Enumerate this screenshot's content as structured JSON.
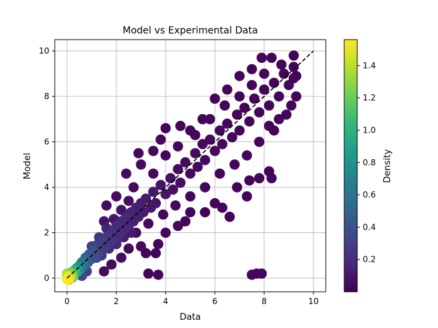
{
  "chart_data": {
    "type": "scatter",
    "title": "Model vs Experimental Data",
    "xlabel": "Data",
    "ylabel": "Model",
    "xlim": [
      -0.5,
      10.5
    ],
    "ylim": [
      -0.6,
      10.5
    ],
    "x_ticks": [
      0,
      2,
      4,
      6,
      8,
      10
    ],
    "y_ticks": [
      0,
      2,
      4,
      6,
      8,
      10
    ],
    "grid": true,
    "reference_line": {
      "style": "dashed",
      "color": "#000000",
      "from": [
        0,
        0
      ],
      "to": [
        10,
        10
      ]
    },
    "colorbar": {
      "label": "Density",
      "colormap": "viridis",
      "range": [
        0.0,
        1.56
      ],
      "ticks": [
        0.2,
        0.4,
        0.6,
        0.8,
        1.0,
        1.2,
        1.4
      ],
      "tick_labels": [
        "0.2",
        "0.4",
        "0.6",
        "0.8",
        "1.0",
        "1.2",
        "1.4"
      ]
    },
    "colors": {
      "viridis": [
        "#440154",
        "#482878",
        "#3e4989",
        "#31688e",
        "#26828e",
        "#1f9e89",
        "#35b779",
        "#6ece58",
        "#b5de2b",
        "#fde725"
      ]
    },
    "series": [
      {
        "points": [
          [
            0.0,
            -0.05,
            1.55
          ],
          [
            0.05,
            0.05,
            1.5
          ],
          [
            0.1,
            0.0,
            1.45
          ],
          [
            0.0,
            0.1,
            1.4
          ],
          [
            0.12,
            0.12,
            1.35
          ],
          [
            0.2,
            0.1,
            1.3
          ],
          [
            0.15,
            0.25,
            1.2
          ],
          [
            0.25,
            0.2,
            1.1
          ],
          [
            0.3,
            0.35,
            1.0
          ],
          [
            0.35,
            0.2,
            0.95
          ],
          [
            0.4,
            0.45,
            0.85
          ],
          [
            0.45,
            0.3,
            0.8
          ],
          [
            0.5,
            0.55,
            0.7
          ],
          [
            0.55,
            0.4,
            0.65
          ],
          [
            0.0,
            0.2,
            1.3
          ],
          [
            0.08,
            -0.08,
            1.5
          ],
          [
            0.22,
            0.02,
            1.2
          ],
          [
            0.6,
            0.7,
            0.6
          ],
          [
            0.7,
            0.55,
            0.55
          ],
          [
            0.75,
            0.9,
            0.5
          ],
          [
            0.85,
            0.7,
            0.45
          ],
          [
            0.9,
            1.05,
            0.42
          ],
          [
            1.0,
            0.85,
            0.4
          ],
          [
            1.05,
            1.2,
            0.38
          ],
          [
            1.15,
            1.0,
            0.35
          ],
          [
            0.8,
            0.3,
            0.3
          ],
          [
            0.6,
            0.1,
            0.35
          ],
          [
            1.2,
            1.45,
            0.3
          ],
          [
            1.3,
            1.1,
            0.3
          ],
          [
            1.4,
            1.6,
            0.28
          ],
          [
            1.5,
            1.3,
            0.27
          ],
          [
            1.6,
            1.8,
            0.25
          ],
          [
            1.7,
            1.5,
            0.24
          ],
          [
            1.8,
            2.0,
            0.22
          ],
          [
            1.9,
            1.7,
            0.22
          ],
          [
            2.0,
            2.3,
            0.2
          ],
          [
            2.1,
            1.9,
            0.2
          ],
          [
            2.2,
            2.5,
            0.18
          ],
          [
            2.3,
            2.1,
            0.18
          ],
          [
            2.4,
            2.7,
            0.17
          ],
          [
            2.5,
            2.3,
            0.16
          ],
          [
            2.6,
            2.9,
            0.15
          ],
          [
            2.7,
            2.5,
            0.15
          ],
          [
            2.8,
            3.1,
            0.14
          ],
          [
            2.9,
            2.7,
            0.14
          ],
          [
            3.0,
            3.3,
            0.13
          ],
          [
            3.1,
            2.9,
            0.12
          ],
          [
            1.5,
            2.5,
            0.08
          ],
          [
            1.6,
            3.2,
            0.05
          ],
          [
            2.0,
            3.6,
            0.05
          ],
          [
            2.4,
            4.6,
            0.04
          ],
          [
            2.9,
            5.5,
            0.03
          ],
          [
            3.0,
            5.0,
            0.04
          ],
          [
            3.5,
            5.6,
            0.03
          ],
          [
            3.8,
            6.1,
            0.03
          ],
          [
            4.0,
            6.6,
            0.02
          ],
          [
            4.6,
            6.7,
            0.02
          ],
          [
            5.0,
            6.5,
            0.02
          ],
          [
            5.5,
            7.0,
            0.02
          ],
          [
            6.0,
            7.9,
            0.02
          ],
          [
            6.5,
            8.3,
            0.02
          ],
          [
            7.0,
            8.9,
            0.02
          ],
          [
            7.5,
            9.2,
            0.02
          ],
          [
            7.9,
            9.7,
            0.02
          ],
          [
            8.3,
            9.7,
            0.02
          ],
          [
            9.2,
            9.8,
            0.02
          ],
          [
            1.5,
            0.3,
            0.05
          ],
          [
            1.8,
            0.6,
            0.05
          ],
          [
            2.2,
            0.9,
            0.06
          ],
          [
            2.5,
            1.3,
            0.05
          ],
          [
            3.0,
            1.4,
            0.04
          ],
          [
            3.2,
            1.1,
            0.03
          ],
          [
            3.6,
            1.1,
            0.02
          ],
          [
            3.7,
            1.5,
            0.03
          ],
          [
            4.0,
            2.0,
            0.03
          ],
          [
            4.5,
            2.3,
            0.03
          ],
          [
            4.8,
            2.5,
            0.02
          ],
          [
            5.0,
            2.9,
            0.02
          ],
          [
            5.6,
            2.9,
            0.02
          ],
          [
            6.0,
            3.3,
            0.02
          ],
          [
            6.3,
            3.1,
            0.02
          ],
          [
            6.6,
            2.7,
            0.02
          ],
          [
            6.9,
            4.0,
            0.02
          ],
          [
            7.3,
            3.6,
            0.02
          ],
          [
            7.4,
            4.3,
            0.02
          ],
          [
            7.8,
            4.4,
            0.02
          ],
          [
            8.2,
            4.7,
            0.02
          ],
          [
            8.3,
            4.4,
            0.02
          ],
          [
            8.2,
            6.7,
            0.02
          ],
          [
            8.6,
            7.0,
            0.02
          ],
          [
            9.1,
            7.6,
            0.02
          ],
          [
            9.3,
            8.0,
            0.02
          ],
          [
            9.2,
            8.8,
            0.02
          ],
          [
            3.3,
            0.2,
            0.02
          ],
          [
            3.7,
            0.15,
            0.02
          ],
          [
            7.5,
            0.15,
            0.02
          ],
          [
            7.7,
            0.2,
            0.02
          ],
          [
            7.9,
            0.2,
            0.02
          ],
          [
            3.2,
            3.5,
            0.11
          ],
          [
            3.4,
            3.1,
            0.1
          ],
          [
            3.5,
            3.8,
            0.1
          ],
          [
            3.6,
            3.3,
            0.09
          ],
          [
            3.8,
            4.1,
            0.08
          ],
          [
            4.0,
            3.7,
            0.08
          ],
          [
            4.2,
            4.4,
            0.07
          ],
          [
            4.3,
            3.9,
            0.07
          ],
          [
            4.5,
            4.8,
            0.06
          ],
          [
            4.6,
            4.2,
            0.06
          ],
          [
            4.8,
            5.1,
            0.05
          ],
          [
            5.0,
            4.6,
            0.05
          ],
          [
            5.2,
            5.5,
            0.05
          ],
          [
            5.3,
            4.9,
            0.04
          ],
          [
            5.5,
            5.9,
            0.04
          ],
          [
            5.6,
            5.2,
            0.04
          ],
          [
            5.8,
            6.1,
            0.04
          ],
          [
            6.0,
            5.6,
            0.03
          ],
          [
            6.2,
            6.5,
            0.03
          ],
          [
            6.3,
            5.9,
            0.03
          ],
          [
            6.5,
            6.8,
            0.03
          ],
          [
            6.7,
            6.2,
            0.03
          ],
          [
            6.9,
            7.2,
            0.02
          ],
          [
            7.0,
            6.5,
            0.02
          ],
          [
            7.2,
            7.5,
            0.02
          ],
          [
            7.4,
            6.9,
            0.02
          ],
          [
            7.6,
            7.9,
            0.02
          ],
          [
            7.8,
            7.3,
            0.02
          ],
          [
            8.0,
            8.3,
            0.02
          ],
          [
            8.2,
            7.6,
            0.02
          ],
          [
            8.4,
            8.6,
            0.02
          ],
          [
            8.6,
            8.0,
            0.02
          ],
          [
            8.8,
            9.0,
            0.02
          ],
          [
            9.0,
            8.5,
            0.02
          ],
          [
            9.2,
            9.3,
            0.02
          ],
          [
            9.3,
            8.9,
            0.02
          ],
          [
            2.7,
            4.0,
            0.03
          ],
          [
            3.5,
            4.6,
            0.03
          ],
          [
            4.0,
            5.4,
            0.02
          ],
          [
            4.5,
            5.8,
            0.02
          ],
          [
            5.2,
            6.3,
            0.02
          ],
          [
            5.8,
            7.0,
            0.02
          ],
          [
            6.4,
            7.6,
            0.02
          ],
          [
            7.0,
            8.0,
            0.02
          ],
          [
            7.5,
            8.5,
            0.02
          ],
          [
            8.0,
            9.0,
            0.02
          ],
          [
            8.7,
            9.4,
            0.02
          ],
          [
            2.8,
            2.0,
            0.05
          ],
          [
            3.3,
            2.4,
            0.04
          ],
          [
            3.9,
            2.8,
            0.03
          ],
          [
            4.4,
            3.2,
            0.03
          ],
          [
            5.0,
            3.6,
            0.02
          ],
          [
            5.6,
            4.0,
            0.02
          ],
          [
            6.2,
            4.6,
            0.02
          ],
          [
            6.8,
            5.0,
            0.02
          ],
          [
            7.3,
            5.4,
            0.02
          ],
          [
            7.8,
            6.0,
            0.02
          ],
          [
            8.4,
            6.5,
            0.02
          ],
          [
            8.9,
            7.2,
            0.02
          ],
          [
            1.2,
            0.9,
            0.3
          ],
          [
            1.4,
            1.0,
            0.25
          ],
          [
            1.7,
            1.3,
            0.2
          ],
          [
            2.0,
            1.5,
            0.15
          ],
          [
            2.3,
            1.8,
            0.12
          ],
          [
            2.6,
            2.0,
            0.1
          ],
          [
            1.0,
            1.4,
            0.3
          ],
          [
            1.3,
            1.8,
            0.25
          ],
          [
            1.6,
            2.2,
            0.15
          ],
          [
            1.9,
            2.6,
            0.1
          ],
          [
            2.2,
            3.0,
            0.08
          ],
          [
            2.5,
            3.4,
            0.06
          ]
        ]
      }
    ]
  }
}
